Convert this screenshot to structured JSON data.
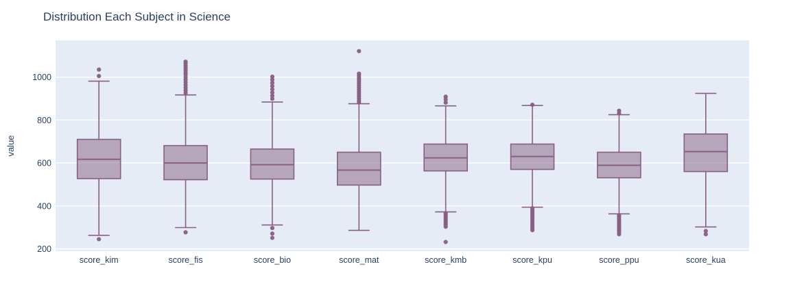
{
  "title": "Distribution Each Subject in Science",
  "colors": {
    "paper_bg": "#ffffff",
    "plot_bg": "#e5ecf6",
    "grid": "#ffffff",
    "box_line": "#875f80",
    "box_fill_alpha": 0.5,
    "text": "#2a3f5f"
  },
  "chart_data": {
    "type": "box",
    "title": "Distribution Each Subject in Science",
    "xlabel": "",
    "ylabel": "value",
    "grid": true,
    "legend": false,
    "yticks": [
      200,
      400,
      600,
      800,
      1000
    ],
    "ylim": [
      189,
      1171
    ],
    "categories": [
      "score_kim",
      "score_fis",
      "score_bio",
      "score_mat",
      "score_kmb",
      "score_kpu",
      "score_ppu",
      "score_kua"
    ],
    "series": [
      {
        "name": "score_kim",
        "whisker_low": 263,
        "q1": 527,
        "median": 617,
        "q3": 710,
        "whisker_high": 981,
        "outliers_high": [
          1035,
          1005
        ],
        "outliers_low": [
          245
        ]
      },
      {
        "name": "score_fis",
        "whisker_low": 299,
        "q1": 522,
        "median": 600,
        "q3": 681,
        "whisker_high": 917,
        "outliers_high": [
          1072,
          1063,
          1053,
          1043,
          1033,
          1022,
          1012,
          1000,
          988,
          976,
          963,
          950,
          938,
          926
        ],
        "outliers_low": [
          277
        ]
      },
      {
        "name": "score_bio",
        "whisker_low": 311,
        "q1": 525,
        "median": 592,
        "q3": 665,
        "whisker_high": 884,
        "outliers_high": [
          1002,
          988,
          973,
          958,
          943,
          928,
          913,
          899
        ],
        "outliers_low": [
          297,
          271,
          251
        ]
      },
      {
        "name": "score_mat",
        "whisker_low": 286,
        "q1": 497,
        "median": 567,
        "q3": 650,
        "whisker_high": 876,
        "outliers_high": [
          1121,
          1016,
          1007,
          998,
          989,
          980,
          971,
          961,
          951,
          941,
          931,
          921,
          911,
          901,
          891,
          882
        ],
        "outliers_low": []
      },
      {
        "name": "score_kmb",
        "whisker_low": 372,
        "q1": 563,
        "median": 624,
        "q3": 688,
        "whisker_high": 866,
        "outliers_high": [
          909,
          896,
          881
        ],
        "outliers_low": [
          366,
          357,
          348,
          339,
          330,
          321,
          312,
          303,
          232
        ]
      },
      {
        "name": "score_kpu",
        "whisker_low": 394,
        "q1": 570,
        "median": 630,
        "q3": 688,
        "whisker_high": 868,
        "outliers_high": [
          871
        ],
        "outliers_low": [
          389,
          380,
          371,
          362,
          352,
          342,
          332,
          322,
          312,
          302,
          292,
          287
        ]
      },
      {
        "name": "score_ppu",
        "whisker_low": 363,
        "q1": 531,
        "median": 589,
        "q3": 650,
        "whisker_high": 825,
        "outliers_high": [
          843,
          831
        ],
        "outliers_low": [
          357,
          349,
          340,
          331,
          322,
          313,
          304,
          295,
          286,
          277,
          268
        ]
      },
      {
        "name": "score_kua",
        "whisker_low": 302,
        "q1": 560,
        "median": 653,
        "q3": 735,
        "whisker_high": 924,
        "outliers_high": [],
        "outliers_low": [
          283,
          268
        ]
      }
    ]
  }
}
